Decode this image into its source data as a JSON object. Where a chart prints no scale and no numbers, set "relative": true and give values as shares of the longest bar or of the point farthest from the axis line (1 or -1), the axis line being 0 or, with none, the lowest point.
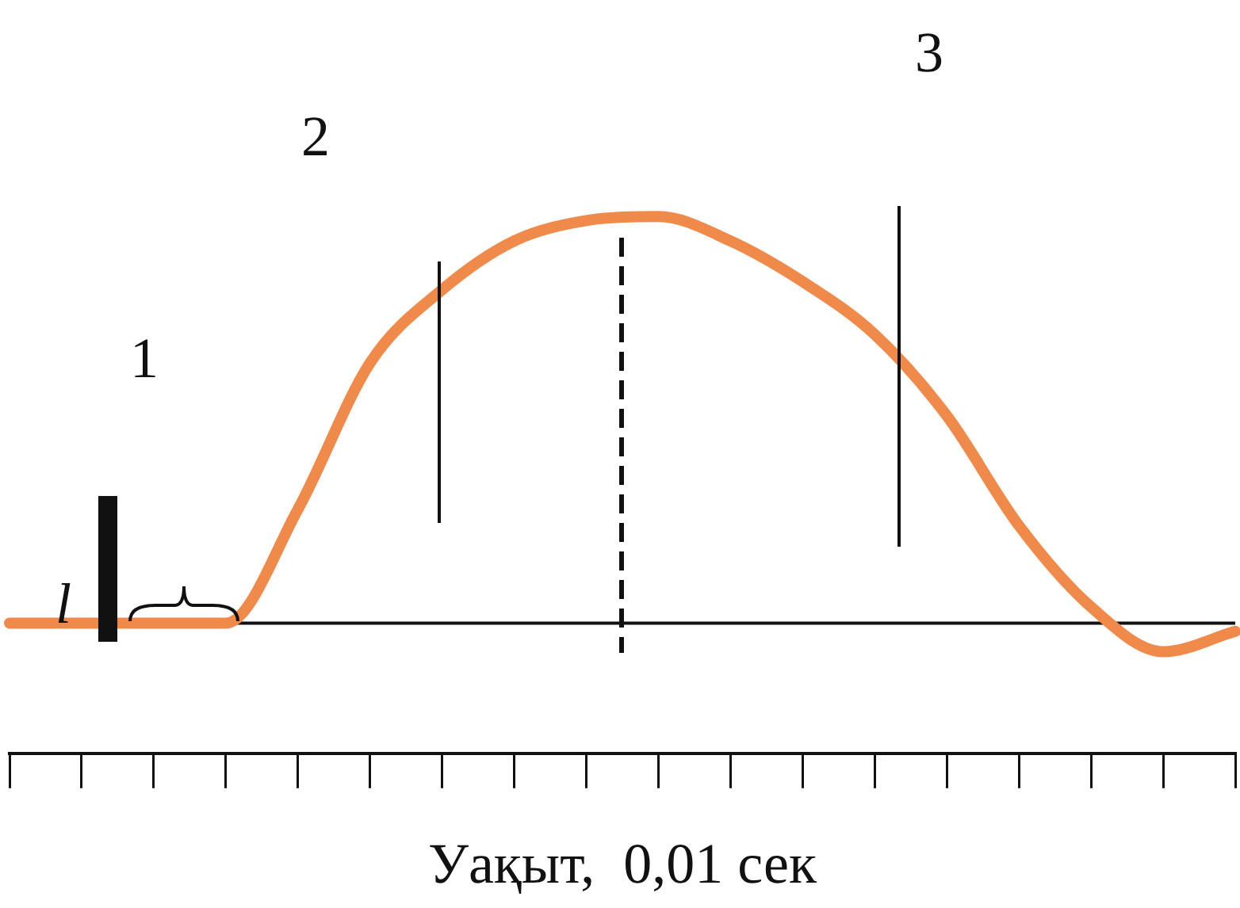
{
  "chart_data": {
    "type": "line",
    "relative": true,
    "xlabel": "Уақыт,  0,01 сек",
    "categories": [
      null,
      null,
      null,
      null,
      null,
      null,
      null,
      null,
      null,
      null,
      null,
      null,
      null,
      null,
      null,
      null,
      null,
      null
    ],
    "series": [
      {
        "color": "#f08a4b",
        "values": [
          0,
          0,
          0,
          0,
          0.28,
          0.64,
          0.82,
          0.94,
          0.99,
          1,
          0.94,
          0.84,
          0.71,
          0.51,
          0.24,
          0.04,
          -0.07,
          -0.02
        ]
      }
    ],
    "ref_lines": [
      {
        "axis": "y",
        "value": 0,
        "color": "#111111",
        "line_style": "solid"
      }
    ],
    "annotations": [
      "1",
      "2",
      "3",
      "l"
    ],
    "marker": "none",
    "line_style": "solid",
    "grid": false,
    "legend": false
  }
}
